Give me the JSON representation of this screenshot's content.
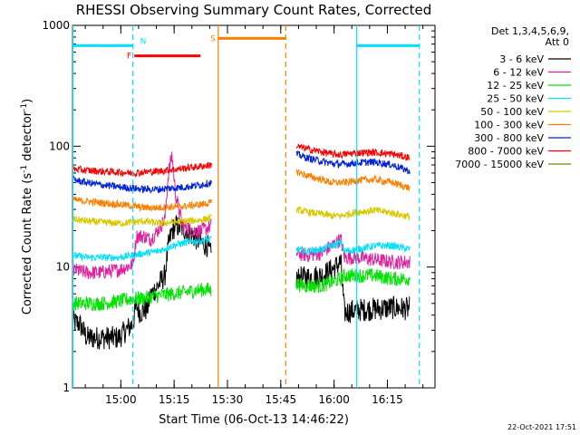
{
  "chart_data": {
    "type": "line",
    "title": "RHESSI Observing Summary Count Rates, Corrected",
    "xlabel": "Start Time (06-Oct-13 14:46:22)",
    "ylabel_main": "Corrected Count Rate (s",
    "ylabel_sup1": "-1",
    "ylabel_mid": " detector",
    "ylabel_sup2": "-1",
    "ylabel_end": ")",
    "y_scale": "log",
    "ylim": [
      1,
      1000
    ],
    "xlim_minutes": [
      0,
      102
    ],
    "x_ticks": [
      {
        "label": "15:00",
        "t": 13.6
      },
      {
        "label": "15:15",
        "t": 28.6
      },
      {
        "label": "15:30",
        "t": 43.6
      },
      {
        "label": "15:45",
        "t": 58.6
      },
      {
        "label": "16:00",
        "t": 73.6
      },
      {
        "label": "16:15",
        "t": 88.6
      }
    ],
    "y_ticks": [
      {
        "label": "1",
        "v": 1
      },
      {
        "label": "10",
        "v": 10
      },
      {
        "label": "100",
        "v": 100
      },
      {
        "label": "1000",
        "v": 1000
      }
    ],
    "legend_header": [
      "Det 1,3,4,5,6,9,",
      "Att 0"
    ],
    "legend_placement": "right",
    "series": [
      {
        "name": "3 - 6 keV",
        "color": "#000000",
        "seg1": [
          [
            0,
            3.5
          ],
          [
            2,
            3.4
          ],
          [
            4,
            2.6
          ],
          [
            8,
            2.6
          ],
          [
            13,
            2.6
          ],
          [
            17,
            3.4
          ],
          [
            18,
            4.8
          ],
          [
            19,
            4.2
          ],
          [
            21,
            4.5
          ],
          [
            22,
            5.8
          ],
          [
            24,
            7.0
          ],
          [
            26,
            8.5
          ],
          [
            27,
            15
          ],
          [
            28,
            20
          ],
          [
            29,
            22
          ],
          [
            31,
            21
          ],
          [
            34,
            18
          ],
          [
            36,
            16
          ],
          [
            38,
            15
          ],
          [
            39.2,
            12
          ]
        ],
        "seg2": [
          [
            63,
            8.0
          ],
          [
            66,
            8.2
          ],
          [
            70,
            8.5
          ],
          [
            73,
            9.5
          ],
          [
            75.5,
            11
          ],
          [
            76.5,
            4.2
          ],
          [
            80,
            4.4
          ],
          [
            85,
            4.5
          ],
          [
            90,
            4.6
          ],
          [
            95,
            4.5
          ]
        ]
      },
      {
        "name": "6 - 12 keV",
        "color": "#e0209c",
        "seg1": [
          [
            0,
            9.5
          ],
          [
            4,
            9.0
          ],
          [
            8,
            9.0
          ],
          [
            13,
            9.5
          ],
          [
            17,
            10.5
          ],
          [
            18,
            18
          ],
          [
            20,
            18
          ],
          [
            22,
            17
          ],
          [
            24,
            20
          ],
          [
            26,
            25
          ],
          [
            27,
            60
          ],
          [
            28,
            85
          ],
          [
            29,
            40
          ],
          [
            31,
            22
          ],
          [
            34,
            20
          ],
          [
            36,
            20
          ],
          [
            38,
            21
          ],
          [
            39.2,
            22
          ]
        ],
        "seg2": [
          [
            63,
            13
          ],
          [
            66,
            12.5
          ],
          [
            70,
            13
          ],
          [
            73,
            15
          ],
          [
            75.5,
            17
          ],
          [
            76.5,
            12
          ],
          [
            80,
            12
          ],
          [
            85,
            11.5
          ],
          [
            90,
            11
          ],
          [
            95,
            11
          ]
        ]
      },
      {
        "name": "12 - 25 keV",
        "color": "#00e400",
        "seg1": [
          [
            0,
            5.0
          ],
          [
            4,
            5.0
          ],
          [
            8,
            5.0
          ],
          [
            13,
            5.2
          ],
          [
            17,
            5.5
          ],
          [
            20,
            5.5
          ],
          [
            24,
            5.8
          ],
          [
            28,
            6.0
          ],
          [
            32,
            6.2
          ],
          [
            36,
            6.5
          ],
          [
            39.2,
            6.5
          ]
        ],
        "seg2": [
          [
            63,
            7.2
          ],
          [
            66,
            7.0
          ],
          [
            70,
            7.0
          ],
          [
            73,
            7.5
          ],
          [
            75.5,
            8.0
          ],
          [
            76.5,
            8.5
          ],
          [
            80,
            8.5
          ],
          [
            85,
            8.5
          ],
          [
            90,
            8.0
          ],
          [
            95,
            8.0
          ]
        ]
      },
      {
        "name": "25 - 50 keV",
        "color": "#00e0ff",
        "seg1": [
          [
            0,
            12.5
          ],
          [
            4,
            12
          ],
          [
            8,
            12
          ],
          [
            13,
            12
          ],
          [
            17,
            12.5
          ],
          [
            20,
            13
          ],
          [
            24,
            13.5
          ],
          [
            28,
            15
          ],
          [
            32,
            16
          ],
          [
            36,
            16.5
          ],
          [
            39.2,
            17
          ]
        ],
        "seg2": [
          [
            63,
            14
          ],
          [
            66,
            13.5
          ],
          [
            70,
            14
          ],
          [
            73,
            15
          ],
          [
            75.5,
            16
          ],
          [
            76.5,
            13.5
          ],
          [
            80,
            14
          ],
          [
            85,
            15
          ],
          [
            90,
            15
          ],
          [
            95,
            14
          ]
        ]
      },
      {
        "name": "50 - 100 keV",
        "color": "#d8c800",
        "seg1": [
          [
            0,
            25
          ],
          [
            4,
            24
          ],
          [
            8,
            23.5
          ],
          [
            13,
            23
          ],
          [
            17,
            23.5
          ],
          [
            20,
            24
          ],
          [
            24,
            23
          ],
          [
            28,
            23.5
          ],
          [
            32,
            24
          ],
          [
            36,
            24.5
          ],
          [
            39.2,
            25.5
          ]
        ],
        "seg2": [
          [
            63,
            30
          ],
          [
            66,
            28.5
          ],
          [
            70,
            27.5
          ],
          [
            73,
            26.5
          ],
          [
            75.5,
            26.5
          ],
          [
            76.5,
            27
          ],
          [
            80,
            28.5
          ],
          [
            85,
            29.5
          ],
          [
            90,
            28
          ],
          [
            95,
            26
          ]
        ]
      },
      {
        "name": "100 - 300 keV",
        "color": "#ff8000",
        "seg1": [
          [
            0,
            36
          ],
          [
            4,
            35
          ],
          [
            8,
            34
          ],
          [
            13,
            33
          ],
          [
            17,
            32
          ],
          [
            20,
            31
          ],
          [
            24,
            31
          ],
          [
            28,
            31.5
          ],
          [
            32,
            32
          ],
          [
            36,
            33
          ],
          [
            39.2,
            34
          ]
        ],
        "seg2": [
          [
            63,
            62
          ],
          [
            66,
            57
          ],
          [
            70,
            53
          ],
          [
            73,
            50
          ],
          [
            75.5,
            50
          ],
          [
            76.5,
            50
          ],
          [
            80,
            52
          ],
          [
            85,
            53
          ],
          [
            90,
            50
          ],
          [
            95,
            45
          ]
        ]
      },
      {
        "name": "300 - 800 keV",
        "color": "#0020e0",
        "seg1": [
          [
            0,
            53
          ],
          [
            4,
            50
          ],
          [
            8,
            48
          ],
          [
            13,
            46
          ],
          [
            17,
            45
          ],
          [
            20,
            44
          ],
          [
            24,
            44
          ],
          [
            28,
            45
          ],
          [
            32,
            46
          ],
          [
            36,
            48
          ],
          [
            39.2,
            50
          ]
        ],
        "seg2": [
          [
            63,
            86
          ],
          [
            66,
            80
          ],
          [
            70,
            75
          ],
          [
            73,
            72
          ],
          [
            75.5,
            71
          ],
          [
            76.5,
            71
          ],
          [
            80,
            73
          ],
          [
            85,
            74
          ],
          [
            90,
            70
          ],
          [
            95,
            62
          ]
        ]
      },
      {
        "name": "800 - 7000 keV",
        "color": "#ff0000",
        "seg1": [
          [
            0,
            65
          ],
          [
            4,
            63
          ],
          [
            8,
            62
          ],
          [
            13,
            61
          ],
          [
            17,
            60
          ],
          [
            20,
            61
          ],
          [
            24,
            62
          ],
          [
            28,
            64
          ],
          [
            32,
            66
          ],
          [
            36,
            68
          ],
          [
            39.2,
            70
          ]
        ],
        "seg2": [
          [
            63,
            100
          ],
          [
            66,
            95
          ],
          [
            70,
            90
          ],
          [
            73,
            86
          ],
          [
            75.5,
            85
          ],
          [
            76.5,
            86
          ],
          [
            80,
            88
          ],
          [
            85,
            89
          ],
          [
            90,
            86
          ],
          [
            95,
            80
          ]
        ]
      },
      {
        "name": "7000 - 15000 keV",
        "color": "#808000",
        "seg1": [],
        "seg2": []
      }
    ],
    "bars": [
      {
        "label": "",
        "color": "#00e0ff",
        "t0": 0,
        "t1": 17.0,
        "v": 680
      },
      {
        "label": "N",
        "color": "#00e0ff",
        "t0": 17.0,
        "t1": 17.0,
        "v": 680
      },
      {
        "label": "F",
        "color": "#ff0000",
        "t0": 17.4,
        "t1": 36.0,
        "v": 560
      },
      {
        "label": "S",
        "color": "#ff8000",
        "t0": 41.0,
        "t1": 60.0,
        "v": 780
      },
      {
        "label": "",
        "color": "#00e0ff",
        "t0": 80.0,
        "t1": 97.6,
        "v": 680
      }
    ],
    "vlines": [
      {
        "t": 0.1,
        "color": "#00e0ff",
        "dash": false
      },
      {
        "t": 17.0,
        "color": "#00e0ff",
        "dash": true
      },
      {
        "t": 41.0,
        "color": "#ff8000",
        "dash": false
      },
      {
        "t": 60.0,
        "color": "#ff8000",
        "dash": true
      },
      {
        "t": 80.0,
        "color": "#00e0ff",
        "dash": false
      },
      {
        "t": 97.6,
        "color": "#00e0ff",
        "dash": true
      }
    ],
    "footer_date": "22-Oct-2021 17:51"
  }
}
